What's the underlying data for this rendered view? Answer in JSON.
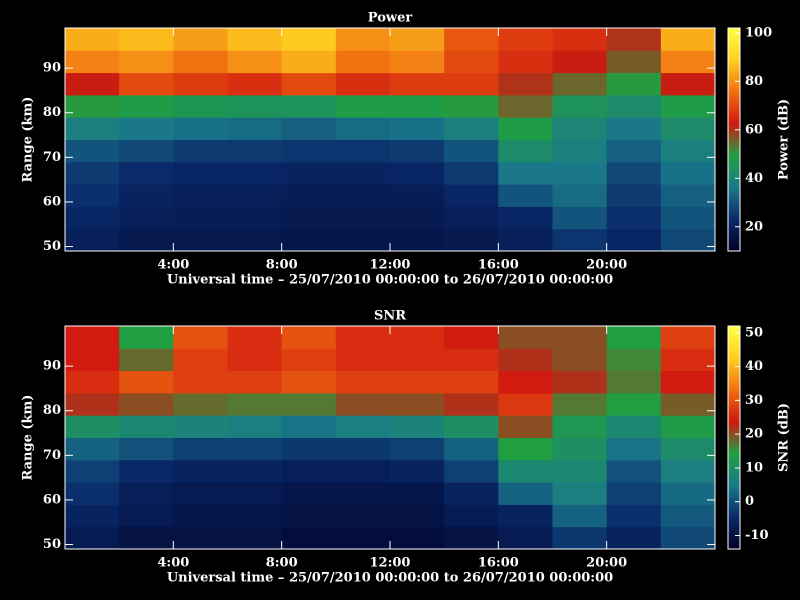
{
  "chart_data": [
    {
      "type": "heatmap",
      "title": "Power",
      "xlabel": "Universal time – 25/07/2010 00:00:00 to 26/07/2010 00:00:00",
      "ylabel": "Range (km)",
      "colorbar_label": "Power (dB)",
      "xbins": [
        0,
        2,
        4,
        6,
        8,
        10,
        12,
        14,
        16,
        18,
        20,
        22,
        24
      ],
      "ybins": [
        49,
        54,
        59,
        64,
        69,
        74,
        79,
        84,
        89,
        94,
        99
      ],
      "z": [
        [
          20,
          18,
          18,
          18,
          17,
          17,
          17,
          18,
          20,
          25,
          22,
          28
        ],
        [
          22,
          20,
          19,
          19,
          18,
          18,
          18,
          20,
          22,
          30,
          24,
          30
        ],
        [
          24,
          21,
          20,
          20,
          19,
          19,
          19,
          22,
          30,
          34,
          26,
          32
        ],
        [
          26,
          23,
          22,
          22,
          21,
          21,
          22,
          26,
          36,
          36,
          28,
          35
        ],
        [
          30,
          28,
          26,
          26,
          25,
          25,
          26,
          30,
          42,
          38,
          32,
          38
        ],
        [
          38,
          36,
          35,
          34,
          32,
          34,
          35,
          38,
          48,
          40,
          36,
          42
        ],
        [
          50,
          48,
          46,
          45,
          45,
          48,
          48,
          50,
          55,
          45,
          42,
          48
        ],
        [
          62,
          70,
          68,
          66,
          70,
          66,
          68,
          68,
          60,
          55,
          50,
          62
        ],
        [
          78,
          80,
          76,
          80,
          84,
          76,
          78,
          70,
          66,
          62,
          56,
          78
        ],
        [
          84,
          86,
          82,
          86,
          88,
          80,
          82,
          72,
          68,
          66,
          60,
          84
        ]
      ],
      "xlim": [
        0,
        24
      ],
      "ylim": [
        49,
        99
      ],
      "xticks": [
        {
          "value": 4,
          "label": "4:00"
        },
        {
          "value": 8,
          "label": "8:00"
        },
        {
          "value": 12,
          "label": "12:00"
        },
        {
          "value": 16,
          "label": "16:00"
        },
        {
          "value": 20,
          "label": "20:00"
        }
      ],
      "yticks": [
        50,
        60,
        70,
        80,
        90
      ],
      "clim": [
        10,
        102
      ],
      "cticks": [
        20,
        40,
        60,
        80,
        100
      ],
      "colormap": [
        "#000028",
        "#0a2a6a",
        "#1a7a8a",
        "#20a040",
        "#d01810",
        "#f07010",
        "#ffd020",
        "#ffff40"
      ]
    },
    {
      "type": "heatmap",
      "title": "SNR",
      "xlabel": "Universal time – 25/07/2010 00:00:00 to 26/07/2010 00:00:00",
      "ylabel": "Range (km)",
      "colorbar_label": "SNR (dB)",
      "xbins": [
        0,
        2,
        4,
        6,
        8,
        10,
        12,
        14,
        16,
        18,
        20,
        22,
        24
      ],
      "ybins": [
        49,
        54,
        59,
        64,
        69,
        74,
        79,
        84,
        89,
        94,
        99
      ],
      "z": [
        [
          -8,
          -10,
          -10,
          -10,
          -11,
          -11,
          -11,
          -10,
          -8,
          -3,
          -6,
          -1
        ],
        [
          -6,
          -8,
          -9,
          -9,
          -10,
          -10,
          -10,
          -8,
          -6,
          2,
          -4,
          1
        ],
        [
          -4,
          -7,
          -8,
          -8,
          -9,
          -9,
          -9,
          -6,
          2,
          6,
          -2,
          3
        ],
        [
          -2,
          -5,
          -6,
          -6,
          -7,
          -7,
          -6,
          -2,
          8,
          8,
          0,
          6
        ],
        [
          2,
          0,
          -2,
          -2,
          -3,
          -3,
          -2,
          2,
          14,
          10,
          4,
          9
        ],
        [
          10,
          8,
          7,
          6,
          4,
          6,
          7,
          10,
          20,
          12,
          8,
          13
        ],
        [
          22,
          20,
          18,
          17,
          17,
          20,
          20,
          22,
          27,
          17,
          14,
          19
        ],
        [
          26,
          30,
          28,
          28,
          30,
          28,
          28,
          28,
          24,
          22,
          17,
          24
        ],
        [
          24,
          18,
          28,
          26,
          28,
          26,
          26,
          26,
          22,
          20,
          16,
          26
        ],
        [
          24,
          14,
          30,
          26,
          30,
          26,
          26,
          24,
          20,
          20,
          14,
          28
        ]
      ],
      "xlim": [
        0,
        24
      ],
      "ylim": [
        49,
        99
      ],
      "xticks": [
        {
          "value": 4,
          "label": "4:00"
        },
        {
          "value": 8,
          "label": "8:00"
        },
        {
          "value": 12,
          "label": "12:00"
        },
        {
          "value": 16,
          "label": "16:00"
        },
        {
          "value": 20,
          "label": "20:00"
        }
      ],
      "yticks": [
        50,
        60,
        70,
        80,
        90
      ],
      "clim": [
        -14,
        52
      ],
      "cticks": [
        -10,
        0,
        10,
        20,
        30,
        40,
        50
      ],
      "colormap": [
        "#000028",
        "#0a2a6a",
        "#1a7a8a",
        "#20a040",
        "#d01810",
        "#f07010",
        "#ffd020",
        "#ffff40"
      ]
    }
  ]
}
